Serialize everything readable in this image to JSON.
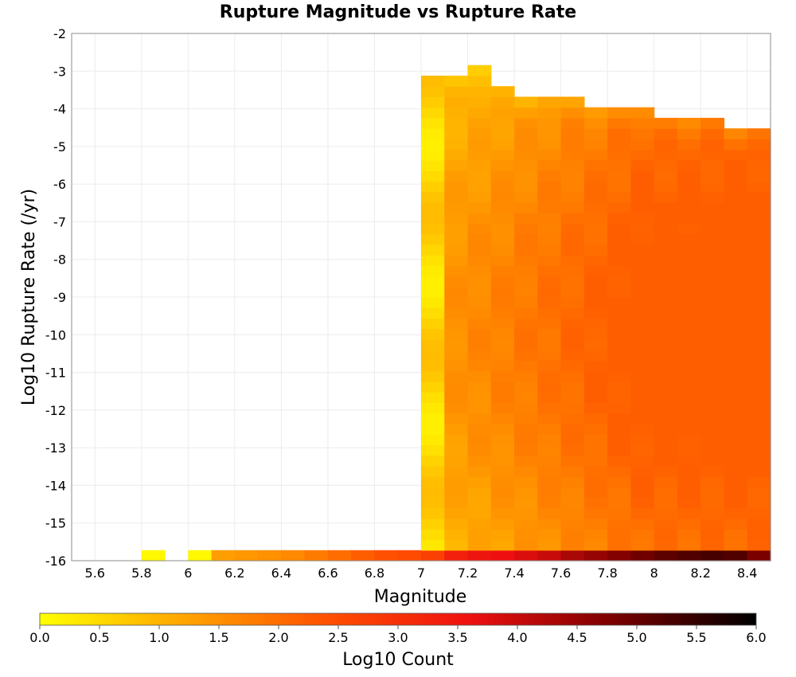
{
  "chart_data": {
    "type": "heatmap",
    "title": "Rupture Magnitude vs Rupture Rate",
    "xlabel": "Magnitude",
    "ylabel": "Log10 Rupture Rate (/yr)",
    "xlim": [
      5.5,
      8.5
    ],
    "ylim": [
      -16,
      -2
    ],
    "xticks": [
      "5.6",
      "5.8",
      "6",
      "6.2",
      "6.4",
      "6.6",
      "6.8",
      "7",
      "7.2",
      "7.4",
      "7.6",
      "7.8",
      "8",
      "8.2",
      "8.4"
    ],
    "yticks": [
      "-2",
      "-3",
      "-4",
      "-5",
      "-6",
      "-7",
      "-8",
      "-9",
      "-10",
      "-11",
      "-12",
      "-13",
      "-14",
      "-15",
      "-16"
    ],
    "x_bin_width": 0.1,
    "y_bin_width": 0.28,
    "grid": true,
    "colorbar": {
      "label": "Log10 Count",
      "range": [
        0.0,
        6.0
      ],
      "ticks": [
        "0.0",
        "0.5",
        "1.0",
        "1.5",
        "2.0",
        "2.5",
        "3.0",
        "3.5",
        "4.0",
        "4.5",
        "5.0",
        "5.5",
        "6.0"
      ],
      "colors": [
        "#ffff00",
        "#ffa500",
        "#ff5000",
        "#ee1010",
        "#7a0000",
        "#000000"
      ]
    },
    "cells_note": "cells: [magnitude bin center, log10 rate bin center, log10 count]",
    "cells": [
      [
        5.85,
        -15.86,
        0.1
      ],
      [
        6.05,
        -15.86,
        0.1
      ],
      [
        6.15,
        -15.86,
        1.3
      ],
      [
        6.25,
        -15.86,
        1.4
      ],
      [
        6.35,
        -15.86,
        1.5
      ],
      [
        6.45,
        -15.86,
        1.6
      ],
      [
        6.55,
        -15.86,
        1.8
      ],
      [
        6.65,
        -15.86,
        2.0
      ],
      [
        6.75,
        -15.86,
        2.2
      ],
      [
        6.85,
        -15.86,
        2.4
      ],
      [
        6.95,
        -15.86,
        2.5
      ],
      [
        7.05,
        -15.86,
        2.7
      ],
      [
        7.15,
        -15.86,
        3.3
      ],
      [
        7.25,
        -15.86,
        3.5
      ],
      [
        7.35,
        -15.86,
        3.6
      ],
      [
        7.45,
        -15.86,
        3.8
      ],
      [
        7.55,
        -15.86,
        4.0
      ],
      [
        7.65,
        -15.86,
        4.3
      ],
      [
        7.75,
        -15.86,
        4.5
      ],
      [
        7.85,
        -15.86,
        4.7
      ],
      [
        7.95,
        -15.86,
        4.9
      ],
      [
        8.05,
        -15.86,
        5.1
      ],
      [
        8.15,
        -15.86,
        5.2
      ],
      [
        8.25,
        -15.86,
        5.3
      ],
      [
        8.35,
        -15.86,
        5.2
      ],
      [
        8.45,
        -15.86,
        4.8
      ]
    ]
  }
}
